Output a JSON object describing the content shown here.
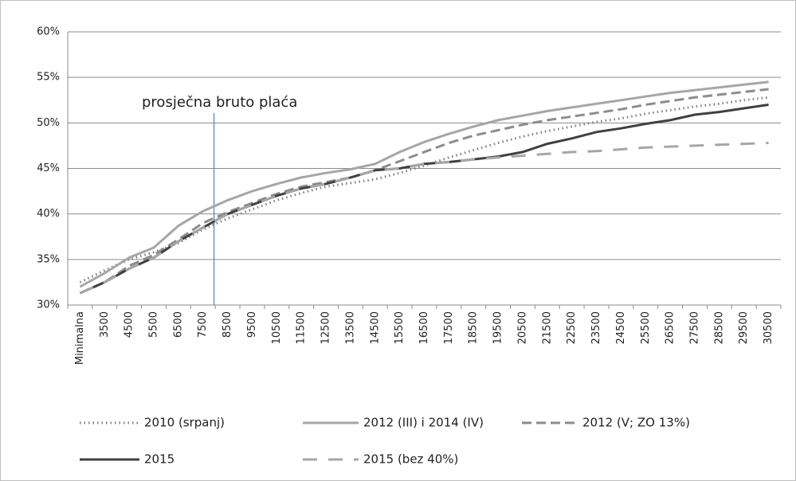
{
  "chart_data": {
    "type": "line",
    "annotation": "prosječna bruto plaća",
    "categories": [
      "Minimalna",
      "3500",
      "4500",
      "5500",
      "6500",
      "7500",
      "8500",
      "9500",
      "10500",
      "11500",
      "12500",
      "13500",
      "14500",
      "15500",
      "16500",
      "17500",
      "18500",
      "19500",
      "20500",
      "21500",
      "22500",
      "23500",
      "24500",
      "25500",
      "26500",
      "27500",
      "28500",
      "29500",
      "30500"
    ],
    "series": [
      {
        "name": "2010 (srpanj)",
        "color": "#7f7f7f",
        "style": "dotted",
        "values": [
          32.5,
          33.8,
          35,
          35.8,
          36.8,
          38.3,
          39.5,
          40.5,
          41.5,
          42.3,
          43,
          43.4,
          43.8,
          44.5,
          45.3,
          46.2,
          47,
          47.8,
          48.5,
          49.1,
          49.6,
          50.1,
          50.5,
          51,
          51.4,
          51.8,
          52.1,
          52.5,
          52.8
        ]
      },
      {
        "name": "2012 (III) i 2014 (IV)",
        "color": "#a6a6a6",
        "style": "solid",
        "values": [
          32,
          33.5,
          35.2,
          36.3,
          38.7,
          40.3,
          41.5,
          42.5,
          43.3,
          44,
          44.5,
          44.9,
          45.5,
          46.8,
          47.9,
          48.8,
          49.6,
          50.3,
          50.8,
          51.3,
          51.7,
          52.1,
          52.5,
          52.9,
          53.3,
          53.6,
          53.9,
          54.2,
          54.5
        ]
      },
      {
        "name": "2012 (V; ZO 13%)",
        "color": "#8c8c8c",
        "style": "dashed",
        "values": [
          31.3,
          32.5,
          34.3,
          35.5,
          37.2,
          39,
          40.2,
          41.2,
          42.2,
          43,
          43.5,
          44,
          44.8,
          45.8,
          46.8,
          47.8,
          48.6,
          49.2,
          49.8,
          50.3,
          50.7,
          51.1,
          51.5,
          52,
          52.4,
          52.8,
          53.1,
          53.4,
          53.7
        ]
      },
      {
        "name": "2015",
        "color": "#404040",
        "style": "solid",
        "values": [
          31.3,
          32.5,
          34,
          35.2,
          37,
          38.5,
          40,
          41,
          42,
          42.8,
          43.3,
          44,
          44.8,
          45,
          45.5,
          45.7,
          46,
          46.3,
          46.8,
          47.7,
          48.3,
          49,
          49.4,
          49.9,
          50.3,
          50.9,
          51.2,
          51.6,
          52
        ]
      },
      {
        "name": "2015 (bez 40%)",
        "color": "#a6a6a6",
        "style": "long-dashed",
        "values": [
          31.3,
          32.5,
          34,
          35.2,
          37,
          38.5,
          40,
          41,
          42,
          42.8,
          43.3,
          44,
          44.8,
          45,
          45.5,
          45.7,
          46,
          46.2,
          46.4,
          46.6,
          46.8,
          46.9,
          47.1,
          47.3,
          47.4,
          47.5,
          47.6,
          47.7,
          47.8
        ]
      }
    ],
    "ylim": [
      30,
      60
    ],
    "yticks": [
      {
        "value": 30,
        "label": "30%"
      },
      {
        "value": 35,
        "label": "35%"
      },
      {
        "value": 40,
        "label": "40%"
      },
      {
        "value": 45,
        "label": "45%"
      },
      {
        "value": 50,
        "label": "50%"
      },
      {
        "value": 55,
        "label": "55%"
      },
      {
        "value": 60,
        "label": "60%"
      }
    ],
    "grid": true
  }
}
